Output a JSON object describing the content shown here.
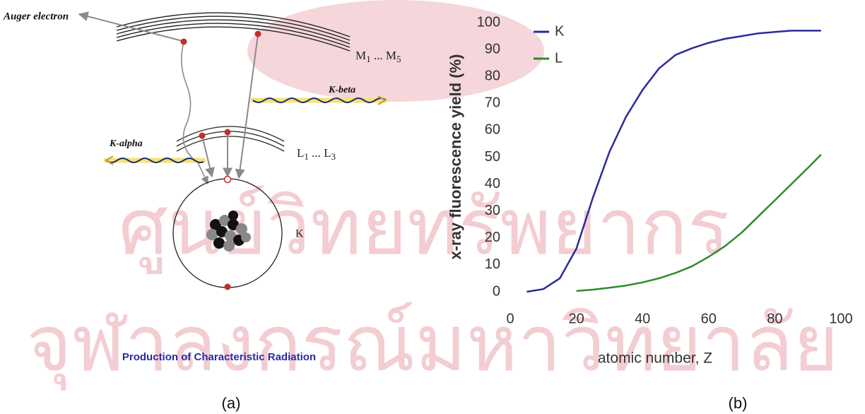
{
  "watermark": {
    "line1": "ศูนย์วิทยทรัพยากร",
    "line2": "จุฬาลงกรณ์มหาวิทยาลัย"
  },
  "diagram": {
    "auger": "Auger electron",
    "shell_m": {
      "start": "M",
      "start_sub": "1",
      "dots": " ... ",
      "end": "M",
      "end_sub": "5"
    },
    "k_beta": "K-beta",
    "k_alpha": "K-alpha",
    "shell_l": {
      "start": "L",
      "start_sub": "1",
      "dots": " ... ",
      "end": "L",
      "end_sub": "3"
    },
    "shell_k": "K",
    "caption": "Production of Characteristic Radiation"
  },
  "captions": [
    "(a)",
    "(b)"
  ],
  "chart_data": {
    "type": "line",
    "x_label": "atomic number, Z",
    "y_label": "x-ray fluorescence yield (%)",
    "x": [
      5,
      10,
      15,
      20,
      25,
      30,
      35,
      40,
      45,
      50,
      55,
      60,
      65,
      70,
      75,
      80,
      85,
      90,
      94
    ],
    "series": [
      {
        "name": "K",
        "color": "#2a2a9c",
        "values": [
          0,
          1,
          5,
          16,
          35,
          52,
          65,
          75,
          83,
          88,
          90.5,
          92.5,
          94,
          95,
          96,
          96.5,
          97,
          97,
          97
        ]
      },
      {
        "name": "L",
        "color": "#2e8b2e",
        "values": [
          null,
          null,
          null,
          0.3,
          0.8,
          1.5,
          2.3,
          3.5,
          5,
          7,
          9.5,
          13,
          17,
          22,
          28,
          34,
          40,
          46,
          51
        ]
      }
    ],
    "xlim": [
      0,
      100
    ],
    "xticks": [
      0,
      20,
      40,
      60,
      80,
      100
    ],
    "ylim": [
      0,
      100
    ],
    "yticks": [
      0,
      10,
      20,
      30,
      40,
      50,
      60,
      70,
      80,
      90,
      100
    ],
    "legend": "top-left",
    "grid": false
  }
}
